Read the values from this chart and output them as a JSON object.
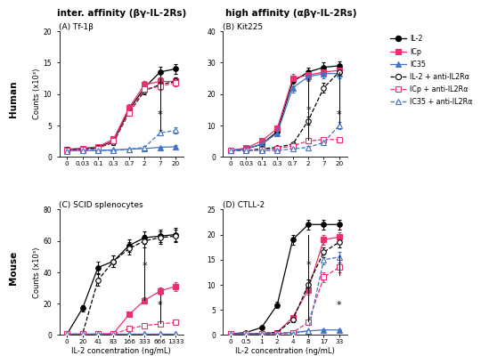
{
  "panel_A": {
    "title": "(A) Tf-1β",
    "x_labels": [
      "0",
      "0.03",
      "0.1",
      "0.3",
      "0.7",
      "2",
      "7",
      "20"
    ],
    "ylim": [
      0,
      20
    ],
    "yticks": [
      0,
      5,
      10,
      15,
      20
    ],
    "ylabel": "Counts (x10³)",
    "series": {
      "IL2": {
        "y": [
          1.2,
          1.3,
          1.5,
          2.5,
          7.5,
          11.0,
          13.5,
          14.0
        ],
        "err": [
          0.2,
          0.2,
          0.3,
          0.4,
          0.6,
          0.7,
          0.8,
          0.8
        ],
        "color": "#000000",
        "marker": "o",
        "filled": true,
        "linestyle": "-"
      },
      "ICp": {
        "y": [
          1.1,
          1.3,
          1.6,
          2.8,
          7.8,
          11.5,
          12.0,
          12.0
        ],
        "err": [
          0.2,
          0.2,
          0.3,
          0.4,
          0.6,
          0.6,
          0.6,
          0.6
        ],
        "color": "#e8316e",
        "marker": "s",
        "filled": true,
        "linestyle": "-"
      },
      "IC35": {
        "y": [
          1.0,
          1.0,
          1.0,
          1.1,
          1.2,
          1.3,
          1.5,
          1.6
        ],
        "err": [
          0.1,
          0.1,
          0.1,
          0.1,
          0.1,
          0.1,
          0.1,
          0.2
        ],
        "color": "#4472c4",
        "marker": "^",
        "filled": true,
        "linestyle": "-"
      },
      "IL2_anti": {
        "y": [
          1.1,
          1.2,
          1.4,
          2.3,
          7.0,
          10.5,
          11.5,
          12.0
        ],
        "err": [
          0.2,
          0.2,
          0.3,
          0.4,
          0.5,
          0.6,
          0.6,
          0.6
        ],
        "color": "#000000",
        "marker": "o",
        "filled": false,
        "linestyle": "--"
      },
      "ICp_anti": {
        "y": [
          1.0,
          1.1,
          1.3,
          2.5,
          7.0,
          10.8,
          11.2,
          11.8
        ],
        "err": [
          0.2,
          0.2,
          0.3,
          0.4,
          0.5,
          0.5,
          0.6,
          0.6
        ],
        "color": "#e8316e",
        "marker": "s",
        "filled": false,
        "linestyle": "--"
      },
      "IC35_anti": {
        "y": [
          0.9,
          1.0,
          1.0,
          1.0,
          1.2,
          1.5,
          3.8,
          4.2
        ],
        "err": [
          0.1,
          0.1,
          0.1,
          0.1,
          0.1,
          0.2,
          0.4,
          0.5
        ],
        "color": "#4472c4",
        "marker": "^",
        "filled": false,
        "linestyle": "--"
      }
    }
  },
  "panel_B": {
    "title": "(B) Kit225",
    "x_labels": [
      "0",
      "0.03",
      "0.1",
      "0.3",
      "0.7",
      "2",
      "7",
      "20"
    ],
    "ylim": [
      0,
      40
    ],
    "yticks": [
      0,
      10,
      20,
      30,
      40
    ],
    "ylabel": "Counts (x10³)",
    "series": {
      "IL2": {
        "y": [
          2.0,
          2.5,
          4.0,
          8.0,
          24.0,
          27.0,
          28.5,
          29.0
        ],
        "err": [
          0.3,
          0.4,
          0.6,
          1.0,
          1.5,
          1.5,
          1.5,
          1.5
        ],
        "color": "#000000",
        "marker": "o",
        "filled": true,
        "linestyle": "-"
      },
      "ICp": {
        "y": [
          2.0,
          2.8,
          5.0,
          9.0,
          25.0,
          26.0,
          27.0,
          27.5
        ],
        "err": [
          0.3,
          0.4,
          0.6,
          1.0,
          1.5,
          1.5,
          1.5,
          1.5
        ],
        "color": "#e8316e",
        "marker": "s",
        "filled": true,
        "linestyle": "-"
      },
      "IC35": {
        "y": [
          2.0,
          2.5,
          4.0,
          7.5,
          22.0,
          25.5,
          26.5,
          26.5
        ],
        "err": [
          0.3,
          0.4,
          0.5,
          0.9,
          1.5,
          1.5,
          1.5,
          1.5
        ],
        "color": "#4472c4",
        "marker": "^",
        "filled": true,
        "linestyle": "-"
      },
      "IL2_anti": {
        "y": [
          2.0,
          2.0,
          2.5,
          3.0,
          4.0,
          11.5,
          22.0,
          27.0
        ],
        "err": [
          0.3,
          0.3,
          0.4,
          0.5,
          0.6,
          1.2,
          1.5,
          1.5
        ],
        "color": "#000000",
        "marker": "o",
        "filled": false,
        "linestyle": "--"
      },
      "ICp_anti": {
        "y": [
          2.0,
          2.0,
          2.2,
          2.5,
          3.5,
          5.0,
          5.5,
          5.5
        ],
        "err": [
          0.3,
          0.3,
          0.3,
          0.4,
          0.5,
          0.6,
          0.6,
          0.6
        ],
        "color": "#e8316e",
        "marker": "s",
        "filled": false,
        "linestyle": "--"
      },
      "IC35_anti": {
        "y": [
          2.0,
          2.0,
          2.0,
          2.0,
          2.5,
          3.0,
          4.5,
          10.0
        ],
        "err": [
          0.3,
          0.3,
          0.3,
          0.3,
          0.4,
          0.4,
          0.5,
          1.2
        ],
        "color": "#4472c4",
        "marker": "^",
        "filled": false,
        "linestyle": "--"
      }
    }
  },
  "panel_C": {
    "title": "(C) SCID splenocytes",
    "x_labels": [
      "0",
      "20",
      "41",
      "83",
      "166",
      "333",
      "666",
      "1333"
    ],
    "ylim": [
      0,
      80
    ],
    "yticks": [
      0,
      20,
      40,
      60,
      80
    ],
    "ylabel": "Counts (x10³)",
    "series": {
      "IL2": {
        "y": [
          0.5,
          17.0,
          43.0,
          47.0,
          57.0,
          62.0,
          63.0,
          64.0
        ],
        "err": [
          0.2,
          2.0,
          3.5,
          3.5,
          4.0,
          4.0,
          4.0,
          4.0
        ],
        "color": "#000000",
        "marker": "o",
        "filled": true,
        "linestyle": "-"
      },
      "ICp": {
        "y": [
          0.5,
          0.5,
          0.5,
          1.0,
          13.0,
          22.0,
          28.0,
          31.0
        ],
        "err": [
          0.2,
          0.2,
          0.2,
          0.3,
          1.2,
          1.8,
          2.2,
          2.8
        ],
        "color": "#e8316e",
        "marker": "s",
        "filled": true,
        "linestyle": "-"
      },
      "IC35": {
        "y": [
          0.5,
          0.5,
          0.5,
          0.5,
          0.5,
          0.5,
          0.5,
          0.5
        ],
        "err": [
          0.1,
          0.1,
          0.1,
          0.1,
          0.1,
          0.1,
          0.1,
          0.1
        ],
        "color": "#4472c4",
        "marker": "^",
        "filled": true,
        "linestyle": "-"
      },
      "IL2_anti": {
        "y": [
          0.5,
          0.5,
          35.0,
          47.0,
          55.0,
          60.0,
          62.0,
          63.0
        ],
        "err": [
          0.2,
          0.2,
          3.5,
          3.5,
          4.0,
          4.0,
          4.0,
          4.0
        ],
        "color": "#000000",
        "marker": "o",
        "filled": false,
        "linestyle": "--"
      },
      "ICp_anti": {
        "y": [
          0.5,
          0.5,
          0.5,
          0.5,
          4.0,
          6.0,
          7.0,
          8.0
        ],
        "err": [
          0.2,
          0.2,
          0.2,
          0.2,
          0.6,
          0.6,
          0.6,
          0.6
        ],
        "color": "#e8316e",
        "marker": "s",
        "filled": false,
        "linestyle": "--"
      },
      "IC35_anti": {
        "y": [
          0.5,
          0.5,
          0.5,
          0.5,
          0.5,
          0.5,
          0.5,
          0.5
        ],
        "err": [
          0.1,
          0.1,
          0.1,
          0.1,
          0.1,
          0.1,
          0.1,
          0.1
        ],
        "color": "#4472c4",
        "marker": "^",
        "filled": false,
        "linestyle": "--"
      }
    }
  },
  "panel_D": {
    "title": "(D) CTLL-2",
    "x_labels": [
      "0",
      "0.5",
      "1",
      "2",
      "4",
      "8",
      "17",
      "33"
    ],
    "ylim": [
      0,
      25
    ],
    "yticks": [
      0,
      5,
      10,
      15,
      20,
      25
    ],
    "ylabel": "Counts (x10³)",
    "series": {
      "IL2": {
        "y": [
          0.2,
          0.5,
          1.5,
          6.0,
          19.0,
          22.0,
          22.0,
          22.0
        ],
        "err": [
          0.1,
          0.2,
          0.3,
          0.7,
          1.0,
          1.0,
          1.0,
          1.0
        ],
        "color": "#000000",
        "marker": "o",
        "filled": true,
        "linestyle": "-"
      },
      "ICp": {
        "y": [
          0.2,
          0.2,
          0.3,
          0.5,
          3.5,
          9.0,
          19.0,
          19.5
        ],
        "err": [
          0.1,
          0.1,
          0.1,
          0.2,
          0.5,
          1.0,
          1.0,
          1.0
        ],
        "color": "#e8316e",
        "marker": "s",
        "filled": true,
        "linestyle": "-"
      },
      "IC35": {
        "y": [
          0.2,
          0.2,
          0.2,
          0.3,
          0.5,
          0.8,
          1.0,
          1.0
        ],
        "err": [
          0.1,
          0.1,
          0.1,
          0.1,
          0.1,
          0.1,
          0.1,
          0.1
        ],
        "color": "#4472c4",
        "marker": "^",
        "filled": true,
        "linestyle": "-"
      },
      "IL2_anti": {
        "y": [
          0.2,
          0.2,
          0.3,
          0.5,
          3.0,
          10.0,
          16.5,
          18.5
        ],
        "err": [
          0.1,
          0.1,
          0.1,
          0.2,
          0.5,
          1.0,
          1.0,
          1.0
        ],
        "color": "#000000",
        "marker": "o",
        "filled": false,
        "linestyle": "--"
      },
      "ICp_anti": {
        "y": [
          0.2,
          0.2,
          0.2,
          0.3,
          0.5,
          2.5,
          11.5,
          13.5
        ],
        "err": [
          0.1,
          0.1,
          0.1,
          0.1,
          0.2,
          0.4,
          1.0,
          1.0
        ],
        "color": "#e8316e",
        "marker": "s",
        "filled": false,
        "linestyle": "--"
      },
      "IC35_anti": {
        "y": [
          0.2,
          0.2,
          0.2,
          0.2,
          0.3,
          0.8,
          15.0,
          15.5
        ],
        "err": [
          0.1,
          0.1,
          0.1,
          0.1,
          0.1,
          0.1,
          1.0,
          1.0
        ],
        "color": "#4472c4",
        "marker": "^",
        "filled": false,
        "linestyle": "--"
      }
    }
  },
  "legend_entries": [
    {
      "label": "IL-2",
      "color": "#000000",
      "marker": "o",
      "filled": true,
      "linestyle": "-"
    },
    {
      "label": "ICp",
      "color": "#e8316e",
      "marker": "s",
      "filled": true,
      "linestyle": "-"
    },
    {
      "label": "IC35",
      "color": "#4472c4",
      "marker": "^",
      "filled": true,
      "linestyle": "-"
    },
    {
      "label": "IL-2 + anti-IL2Rα",
      "color": "#000000",
      "marker": "o",
      "filled": false,
      "linestyle": "--"
    },
    {
      "label": "ICp + anti-IL2Rα",
      "color": "#e8316e",
      "marker": "s",
      "filled": false,
      "linestyle": "--"
    },
    {
      "label": "IC35 + anti-IL2Rα",
      "color": "#4472c4",
      "marker": "^",
      "filled": false,
      "linestyle": "--"
    }
  ],
  "col_titles": [
    "inter. affinity (βγ-IL-2Rs)",
    "high affinity (αβγ-IL-2Rs)"
  ],
  "row_labels": [
    "Human",
    "Mouse"
  ],
  "xlabel": "IL-2 concentration (ng/mL)",
  "bg": "#ffffff"
}
